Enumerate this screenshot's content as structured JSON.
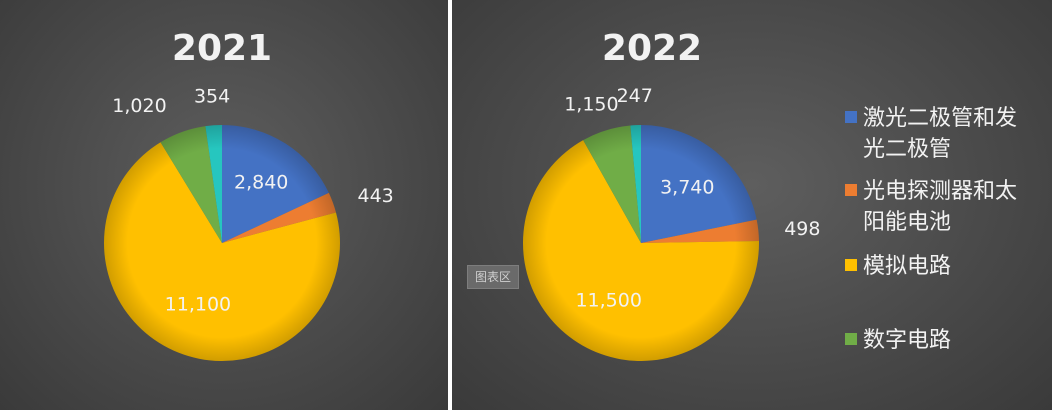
{
  "chart_area_tag": "图表区",
  "chart_data": [
    {
      "type": "pie",
      "title": "2021",
      "slices": [
        {
          "name": "激光二极管和发光二极管",
          "value": 2840,
          "label": "2,840",
          "color": "#4472c4"
        },
        {
          "name": "光电探测器和太阳能电池",
          "value": 443,
          "label": "443",
          "color": "#ed7d31"
        },
        {
          "name": "模拟电路",
          "value": 11100,
          "label": "11,100",
          "color": "#ffc000"
        },
        {
          "name": "数字电路",
          "value": 1020,
          "label": "1,020",
          "color": "#70ad47"
        },
        {
          "name": "",
          "value": 354,
          "label": "354",
          "color": "#26c6bf"
        }
      ]
    },
    {
      "type": "pie",
      "title": "2022",
      "slices": [
        {
          "name": "激光二极管和发光二极管",
          "value": 3740,
          "label": "3,740",
          "color": "#4472c4"
        },
        {
          "name": "光电探测器和太阳能电池",
          "value": 498,
          "label": "498",
          "color": "#ed7d31"
        },
        {
          "name": "模拟电路",
          "value": 11500,
          "label": "11,500",
          "color": "#ffc000"
        },
        {
          "name": "数字电路",
          "value": 1150,
          "label": "1,150",
          "color": "#70ad47"
        },
        {
          "name": "",
          "value": 247,
          "label": "247",
          "color": "#26c6bf"
        }
      ]
    }
  ],
  "legend": {
    "placement": "right",
    "items": [
      {
        "lines": [
          "激光二极管和发",
          "光二极管"
        ],
        "color": "#4472c4"
      },
      {
        "lines": [
          "光电探测器和太",
          "阳能电池"
        ],
        "color": "#ed7d31"
      },
      {
        "lines": [
          "模拟电路"
        ],
        "color": "#ffc000"
      },
      {
        "lines": [
          "数字电路"
        ],
        "color": "#70ad47"
      }
    ]
  }
}
